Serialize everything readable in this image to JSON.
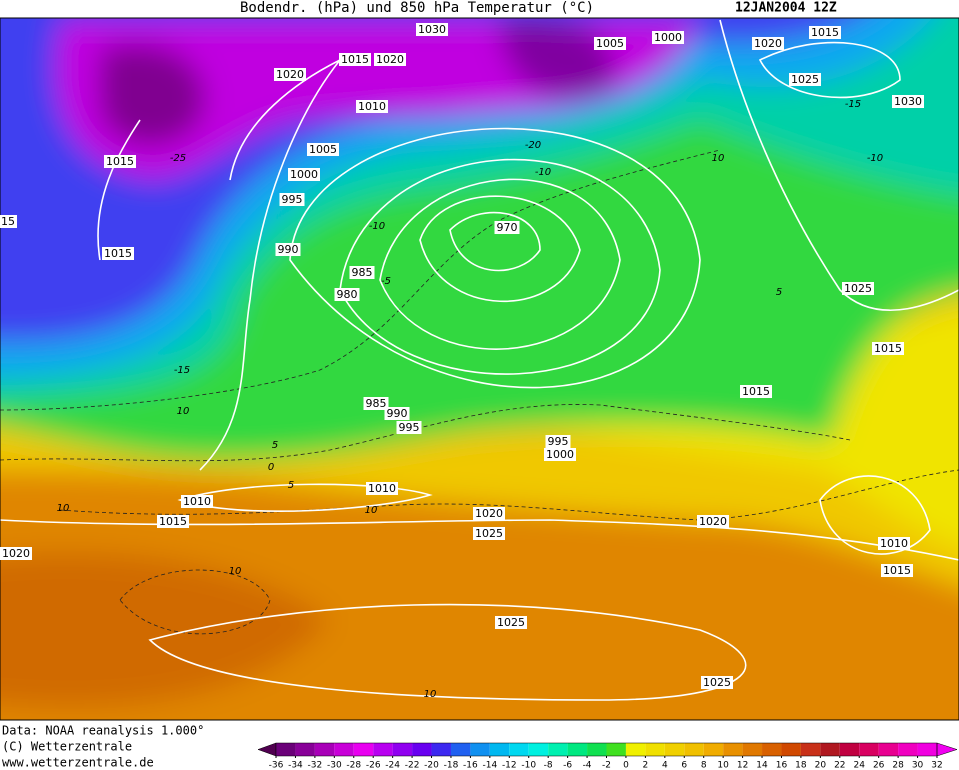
{
  "header": {
    "title": "Bodendr. (hPa) und 850 hPa Temperatur (°C)",
    "date": "12JAN2004 12Z"
  },
  "footer": {
    "lines": [
      "Data: NOAA reanalysis 1.000°",
      "(C) Wetterzentrale",
      "www.wetterzentrale.de"
    ]
  },
  "colorbar": {
    "ticks": [
      -36,
      -34,
      -32,
      -30,
      -28,
      -26,
      -24,
      -22,
      -20,
      -18,
      -16,
      -14,
      -12,
      -10,
      -8,
      -6,
      -4,
      -2,
      0,
      2,
      4,
      6,
      8,
      10,
      12,
      14,
      16,
      18,
      20,
      22,
      24,
      26,
      28,
      30,
      32
    ],
    "colors": [
      "#500050",
      "#6a0078",
      "#880098",
      "#a800b8",
      "#c800d8",
      "#e800f0",
      "#b800f0",
      "#9000f0",
      "#6800f0",
      "#3c28f0",
      "#2060f0",
      "#1090f0",
      "#00b8f0",
      "#00d8f0",
      "#00f0e0",
      "#00f0b0",
      "#00e880",
      "#10e050",
      "#40e020",
      "#f0f000",
      "#f0e000",
      "#f0d000",
      "#f0c000",
      "#f0ac00",
      "#e89000",
      "#e07800",
      "#d86000",
      "#d04800",
      "#c83018",
      "#b01820",
      "#c00040",
      "#d80060",
      "#e80090",
      "#f000c0",
      "#f000e0",
      "#f000f0"
    ]
  },
  "isobar_labels": [
    "1030",
    "1015",
    "1020",
    "1005",
    "1000",
    "1020",
    "1015",
    "1020",
    "1025",
    "1030",
    "1010",
    "1005",
    "1000",
    "995",
    "1015",
    "15",
    "970",
    "990",
    "1015",
    "985",
    "980",
    "1025",
    "1015",
    "1015",
    "985",
    "990",
    "995",
    "995",
    "1000",
    "1010",
    "1010",
    "1015",
    "1020",
    "1020",
    "1025",
    "1010",
    "1020",
    "1015",
    "1025",
    "1025"
  ],
  "temperature_labels": [
    "-25",
    "-20",
    "-15",
    "-10",
    "-5",
    "10",
    "5",
    "0",
    "5",
    "10",
    "10",
    "10",
    "10",
    "10",
    "-15",
    "-10",
    "5",
    "-10"
  ]
}
